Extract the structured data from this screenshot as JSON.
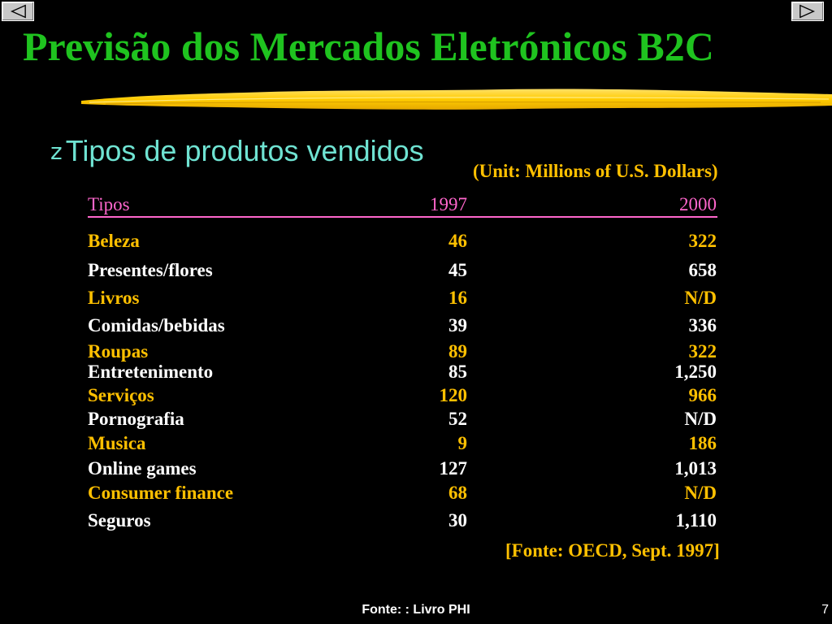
{
  "slide": {
    "title": "Previsão dos Mercados Eletrónicos B2C",
    "bullet_icon": "bullet-z-glyph",
    "bullet_glyph": "z",
    "bullet_text": "Tipos de produtos vendidos",
    "unit_note": "(Unit: Millions of U.S. Dollars)",
    "source": "[Fonte: OECD, Sept. 1997]",
    "footer": "Fonte: : Livro PHI",
    "page_number": "7"
  },
  "nav": {
    "prev_icon": "triangle-left-icon",
    "next_icon": "triangle-right-icon"
  },
  "colors": {
    "background": "#000000",
    "title": "#1fc31f",
    "bullet": "#6fe3d2",
    "accent_yellow": "#ffc000",
    "header_pink": "#ff66cc",
    "body_white": "#ffffff"
  },
  "table": {
    "headers": [
      "Tipos",
      "1997",
      "2000"
    ],
    "rows": [
      {
        "name": "Beleza",
        "y1997": "46",
        "y2000": "322",
        "style": "yellow"
      },
      {
        "name": "Presentes/flores",
        "y1997": "45",
        "y2000": "658",
        "style": "white"
      },
      {
        "name": "Livros",
        "y1997": "16",
        "y2000": "N/D",
        "style": "yellow"
      },
      {
        "name": "Comidas/bebidas",
        "y1997": "39",
        "y2000": "336",
        "style": "white"
      },
      {
        "name": "Roupas",
        "y1997": "89",
        "y2000": "322",
        "style": "yellow"
      },
      {
        "name": "Entretenimento",
        "y1997": "85",
        "y2000": "1,250",
        "style": "white"
      },
      {
        "name": "Serviços",
        "y1997": "120",
        "y2000": "966",
        "style": "yellow"
      },
      {
        "name": "Pornografia",
        "y1997": "52",
        "y2000": "N/D",
        "style": "white"
      },
      {
        "name": "Musica",
        "y1997": "9",
        "y2000": "186",
        "style": "yellow"
      },
      {
        "name": "Online games",
        "y1997": "127",
        "y2000": "1,013",
        "style": "white"
      },
      {
        "name": "Consumer finance",
        "y1997": "68",
        "y2000": "N/D",
        "style": "yellow"
      },
      {
        "name": "Seguros",
        "y1997": "30",
        "y2000": "1,110",
        "style": "white"
      }
    ]
  }
}
